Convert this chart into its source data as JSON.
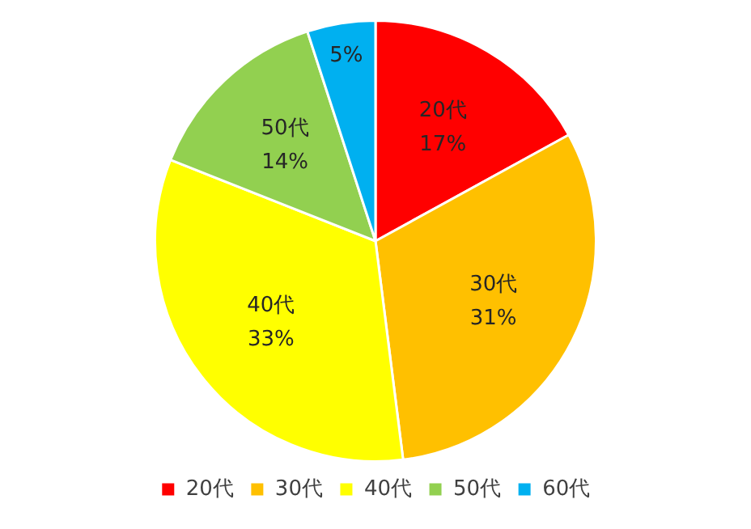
{
  "chart_data": {
    "type": "pie",
    "categories": [
      "20代",
      "30代",
      "40代",
      "50代",
      "60代"
    ],
    "values": [
      17,
      31,
      33,
      14,
      5
    ],
    "colors": [
      "#ff0000",
      "#ffc000",
      "#ffff00",
      "#92d050",
      "#00b0f0"
    ],
    "value_labels": [
      "17%",
      "31%",
      "33%",
      "14%",
      "5%"
    ],
    "legend": "bottom"
  }
}
